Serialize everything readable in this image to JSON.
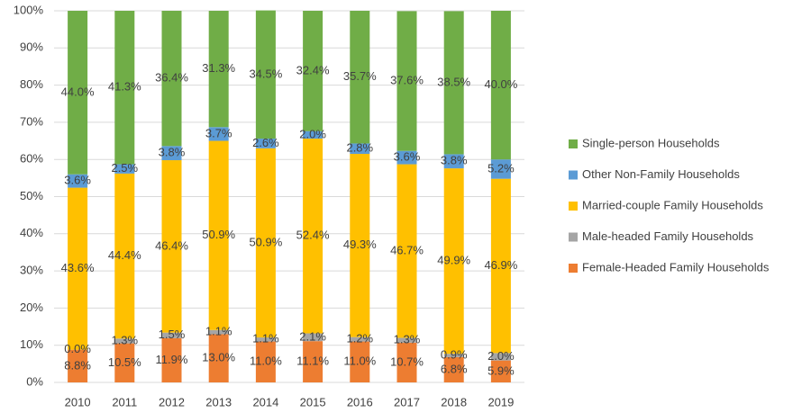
{
  "chart_data": {
    "type": "stacked_bar_percent",
    "categories": [
      "2010",
      "2011",
      "2012",
      "2013",
      "2014",
      "2015",
      "2016",
      "2017",
      "2018",
      "2019"
    ],
    "series": [
      {
        "name": "Female-Headed Family Households",
        "color": "#ed7d31",
        "values": [
          8.8,
          10.5,
          11.9,
          13.0,
          11.0,
          11.1,
          11.0,
          10.7,
          6.8,
          5.9
        ],
        "value_labels": [
          "8.8%",
          "10.5%",
          "11.9%",
          "13.0%",
          "11.0%",
          "11.1%",
          "11.0%",
          "10.7%",
          "6.8%",
          "5.9%"
        ]
      },
      {
        "name": "Male-headed Family Households",
        "color": "#a5a5a5",
        "values": [
          0.0,
          1.3,
          1.5,
          1.1,
          1.1,
          2.1,
          1.2,
          1.3,
          0.9,
          2.0
        ],
        "value_labels": [
          "0.0%",
          "1.3%",
          "1.5%",
          "1.1%",
          "1.1%",
          "2.1%",
          "1.2%",
          "1.3%",
          "0.9%",
          "2.0%"
        ]
      },
      {
        "name": "Married-couple Family Households",
        "color": "#ffc000",
        "values": [
          43.6,
          44.4,
          46.4,
          50.9,
          50.9,
          52.4,
          49.3,
          46.7,
          49.9,
          46.9
        ],
        "value_labels": [
          "43.6%",
          "44.4%",
          "46.4%",
          "50.9%",
          "50.9%",
          "52.4%",
          "49.3%",
          "46.7%",
          "49.9%",
          "46.9%"
        ]
      },
      {
        "name": "Other Non-Family Households",
        "color": "#5b9bd5",
        "values": [
          3.6,
          2.5,
          3.8,
          3.7,
          2.6,
          2.0,
          2.8,
          3.6,
          3.8,
          5.2
        ],
        "value_labels": [
          "3.6%",
          "2.5%",
          "3.8%",
          "3.7%",
          "2.6%",
          "2.0%",
          "2.8%",
          "3.6%",
          "3.8%",
          "5.2%"
        ]
      },
      {
        "name": "Single-person Households",
        "color": "#70ad47",
        "values": [
          44.0,
          41.3,
          36.4,
          31.3,
          34.5,
          32.4,
          35.7,
          37.6,
          38.5,
          40.0
        ],
        "value_labels": [
          "44.0%",
          "41.3%",
          "36.4%",
          "31.3%",
          "34.5%",
          "32.4%",
          "35.7%",
          "37.6%",
          "38.5%",
          "40.0%"
        ]
      }
    ],
    "ylim": [
      0,
      100
    ],
    "yticks": [
      {
        "value": 0,
        "label": "0%"
      },
      {
        "value": 10,
        "label": "10%"
      },
      {
        "value": 20,
        "label": "20%"
      },
      {
        "value": 30,
        "label": "30%"
      },
      {
        "value": 40,
        "label": "40%"
      },
      {
        "value": 50,
        "label": "50%"
      },
      {
        "value": 60,
        "label": "60%"
      },
      {
        "value": 70,
        "label": "70%"
      },
      {
        "value": 80,
        "label": "80%"
      },
      {
        "value": 90,
        "label": "90%"
      },
      {
        "value": 100,
        "label": "100%"
      }
    ],
    "grid": true,
    "legend": "right"
  }
}
